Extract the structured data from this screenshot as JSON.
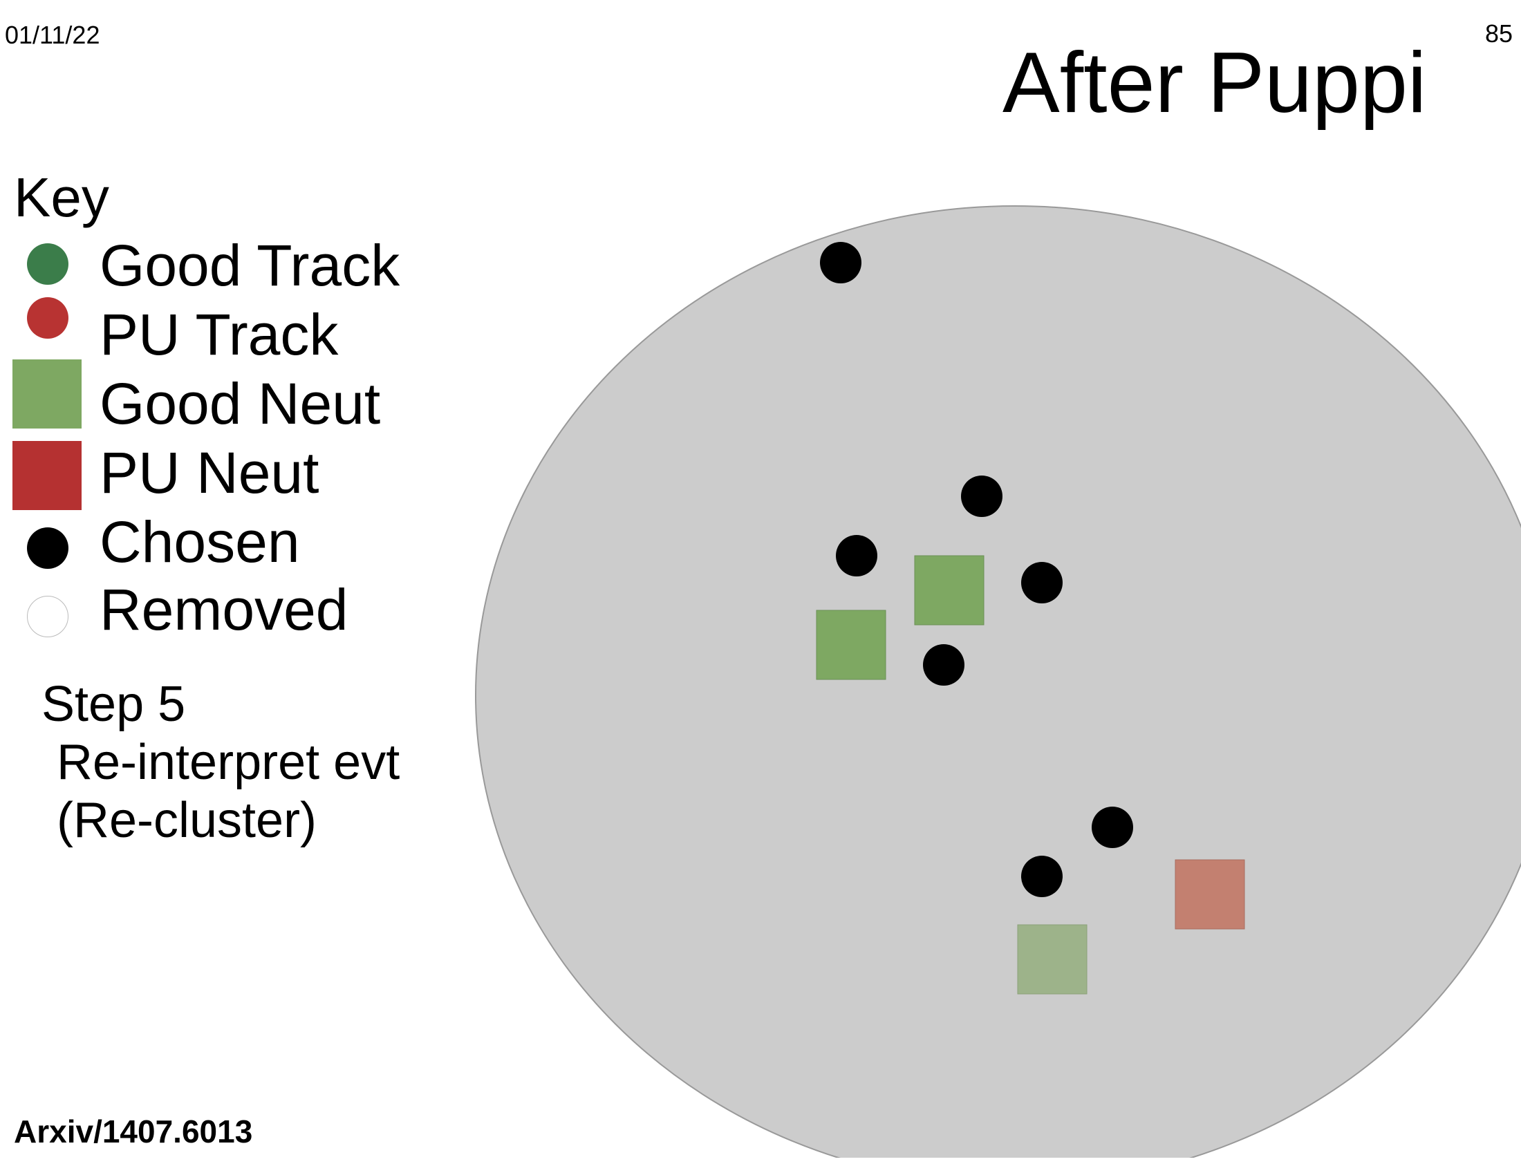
{
  "header": {
    "date": "01/11/22",
    "page_number": "85",
    "title": "After Puppi"
  },
  "legend": {
    "title": "Key",
    "items": [
      {
        "label": "Good Track",
        "shape": "circle",
        "color": "#3b7d4a"
      },
      {
        "label": "PU Track",
        "shape": "circle",
        "color": "#b83332"
      },
      {
        "label": "Good Neut",
        "shape": "square",
        "color": "#7ea862"
      },
      {
        "label": "PU Neut",
        "shape": "square",
        "color": "#b53131"
      },
      {
        "label": "Chosen",
        "shape": "circle",
        "color": "#000000"
      },
      {
        "label": "Removed",
        "shape": "circle",
        "color": "#ffffff"
      }
    ]
  },
  "step": {
    "line1": "Step 5",
    "line2": "Re-interpret evt",
    "line3": "(Re-cluster)"
  },
  "citation": "Arxiv/1407.6013",
  "colors": {
    "region_fill": "#cccccc",
    "region_stroke": "#999999",
    "chosen": "#000000",
    "good_neut": "#7ea862",
    "good_neut_light": "#9db38a",
    "pu_neut_faded": "#c38070"
  }
}
